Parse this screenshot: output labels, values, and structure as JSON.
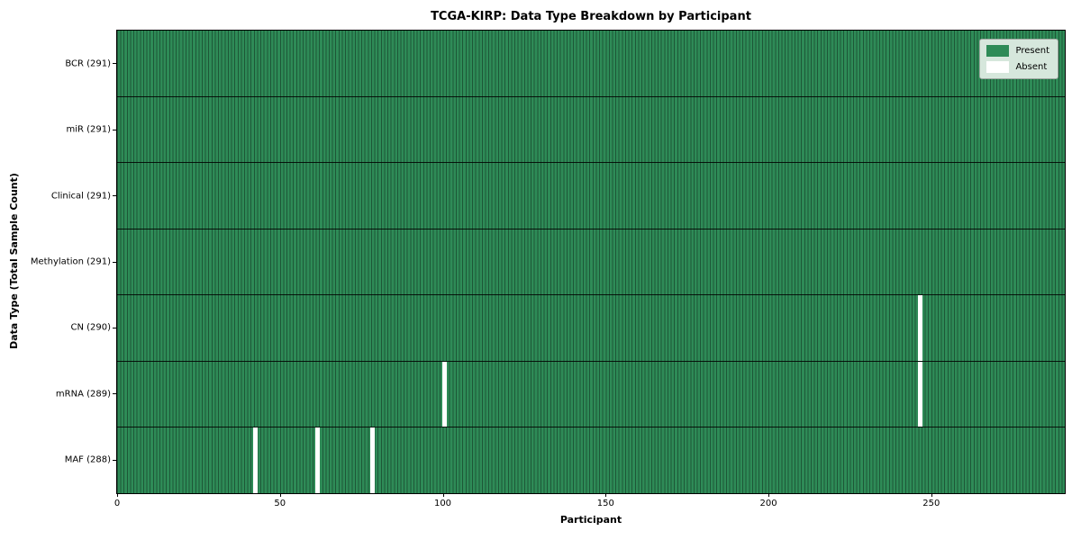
{
  "chart_data": {
    "type": "heatmap",
    "title": "TCGA-KIRP: Data Type Breakdown by Participant",
    "xlabel": "Participant",
    "ylabel": "Data Type (Total Sample Count)",
    "x_range": [
      0,
      291
    ],
    "x_ticks": [
      0,
      50,
      100,
      150,
      200,
      250
    ],
    "n_participants": 291,
    "grid": false,
    "legend_position": "upper right",
    "legend": [
      {
        "label": "Present",
        "color": "#2e8b57"
      },
      {
        "label": "Absent",
        "color": "#ffffff"
      }
    ],
    "colors": {
      "present_fill": "#2e8b57",
      "cell_edge": "#1d5737",
      "absent_fill": "#ffffff",
      "row_divider": "#000000",
      "legend_bg": "#d6e7dc"
    },
    "rows": [
      {
        "data_type": "BCR",
        "label": "BCR (291)",
        "present_count": 291,
        "absent_participants": []
      },
      {
        "data_type": "miR",
        "label": "miR (291)",
        "present_count": 291,
        "absent_participants": []
      },
      {
        "data_type": "Clinical",
        "label": "Clinical (291)",
        "present_count": 291,
        "absent_participants": []
      },
      {
        "data_type": "Methylation",
        "label": "Methylation (291)",
        "present_count": 291,
        "absent_participants": []
      },
      {
        "data_type": "CN",
        "label": "CN (290)",
        "present_count": 290,
        "absent_participants": [
          246
        ]
      },
      {
        "data_type": "mRNA",
        "label": "mRNA (289)",
        "present_count": 289,
        "absent_participants": [
          100,
          246
        ]
      },
      {
        "data_type": "MAF",
        "label": "MAF (288)",
        "present_count": 288,
        "absent_participants": [
          42,
          61,
          78
        ]
      }
    ]
  }
}
